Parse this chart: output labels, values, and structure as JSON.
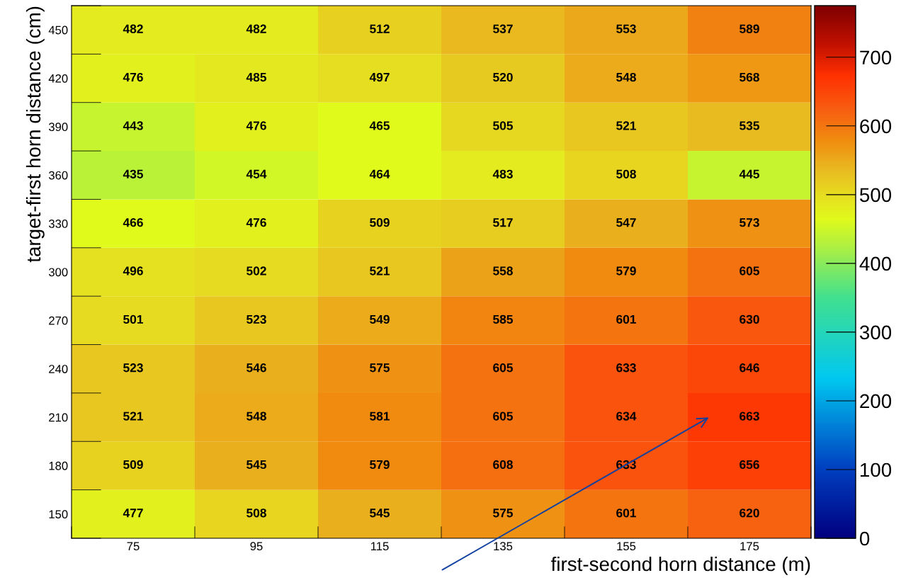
{
  "chart_data": {
    "type": "heatmap",
    "xlabel": "first-second horn distance (m)",
    "ylabel": "target-first horn distance (cm)",
    "categories": [
      "75",
      "95",
      "115",
      "135",
      "155",
      "175"
    ],
    "y_categories": [
      "450",
      "420",
      "390",
      "360",
      "330",
      "300",
      "270",
      "240",
      "210",
      "180",
      "150"
    ],
    "cells": [
      [
        482,
        482,
        512,
        537,
        553,
        589
      ],
      [
        476,
        485,
        497,
        520,
        548,
        568
      ],
      [
        443,
        476,
        465,
        505,
        521,
        535
      ],
      [
        435,
        454,
        464,
        483,
        508,
        445
      ],
      [
        466,
        476,
        509,
        517,
        547,
        573
      ],
      [
        496,
        502,
        521,
        558,
        579,
        605
      ],
      [
        501,
        523,
        549,
        585,
        601,
        630
      ],
      [
        523,
        546,
        575,
        605,
        633,
        646
      ],
      [
        521,
        548,
        581,
        605,
        634,
        663
      ],
      [
        509,
        545,
        579,
        608,
        633,
        656
      ],
      [
        477,
        508,
        545,
        575,
        601,
        620
      ]
    ],
    "data_labels": true,
    "clim": [
      0,
      775
    ],
    "cticks": [
      0,
      100,
      200,
      300,
      400,
      500,
      600,
      700
    ]
  }
}
